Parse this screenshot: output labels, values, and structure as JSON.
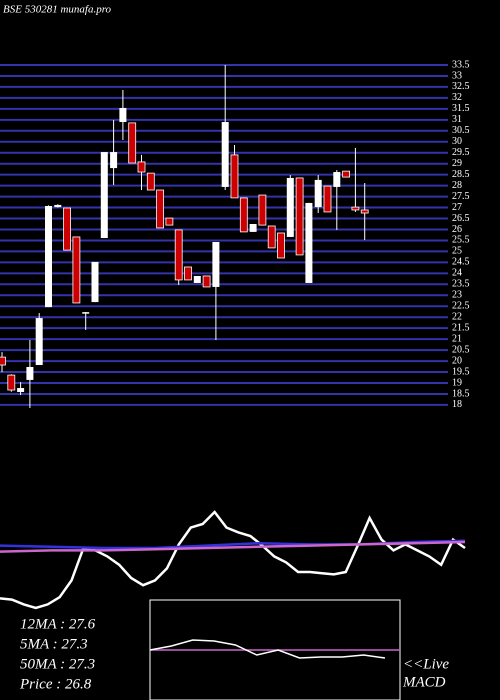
{
  "chart_data": [
    {
      "type": "candlestick",
      "title": "BSE 530281 munafa.pro",
      "open": [
        20.18,
        19.36,
        18.59,
        19.14,
        19.82,
        22.46,
        27.02,
        26.98,
        25.66,
        22.19,
        22.69,
        25.61,
        28.8,
        30.9,
        30.86,
        29.08,
        28.57,
        27.8,
        26.52,
        25.98,
        24.29,
        23.56,
        23.88,
        23.38,
        27.94,
        29.4,
        27.44,
        25.89,
        27.57,
        26.16,
        25.84,
        25.66,
        28.35,
        23.56,
        27.02,
        27.98,
        27.94,
        28.66,
        27.02,
        26.89
      ],
      "high": [
        20.41,
        19.4,
        19.04,
        20.96,
        22.19,
        27.1,
        27.15,
        26.98,
        25.66,
        22.23,
        24.52,
        29.53,
        30.99,
        32.36,
        30.86,
        29.4,
        28.57,
        27.8,
        26.52,
        25.98,
        24.29,
        23.88,
        23.88,
        25.43,
        33.5,
        29.85,
        27.44,
        26.25,
        27.57,
        26.16,
        25.84,
        28.48,
        28.35,
        27.21,
        28.48,
        27.98,
        28.71,
        28.66,
        29.72,
        28.12
      ],
      "low": [
        19.5,
        18.6,
        18.45,
        17.86,
        19.82,
        22.46,
        27.0,
        25.06,
        22.65,
        21.42,
        22.69,
        25.61,
        28.03,
        30.08,
        29.03,
        27.8,
        27.8,
        26.07,
        26.2,
        23.47,
        23.7,
        23.56,
        23.38,
        20.96,
        27.8,
        27.44,
        25.89,
        25.89,
        26.2,
        25.16,
        24.7,
        25.66,
        24.84,
        23.56,
        26.75,
        26.8,
        25.98,
        28.39,
        26.8,
        25.52
      ],
      "close": [
        19.82,
        18.68,
        18.77,
        19.73,
        21.96,
        27.07,
        27.12,
        25.06,
        22.65,
        22.23,
        24.52,
        29.53,
        29.53,
        31.54,
        29.03,
        28.62,
        27.8,
        26.07,
        26.2,
        23.7,
        23.7,
        23.88,
        23.38,
        25.43,
        30.9,
        27.44,
        25.89,
        26.25,
        26.2,
        25.16,
        24.7,
        28.35,
        24.84,
        27.21,
        28.26,
        26.8,
        28.62,
        28.39,
        26.89,
        26.75
      ],
      "up_color": "#ffffff",
      "down_color": "#cc0000",
      "grid_color": "#3333aa",
      "ylim": [
        17.86,
        33.5
      ],
      "yticks": [
        33.5,
        33,
        32.5,
        32,
        31.5,
        31,
        30.5,
        30,
        29.5,
        29,
        28.5,
        28,
        27.5,
        27,
        26.5,
        26,
        25.5,
        25,
        24.5,
        24,
        23.5,
        23,
        22.5,
        22,
        21.5,
        21,
        20.5,
        20,
        19.5,
        19,
        18.5,
        18
      ],
      "grid": true
    },
    {
      "type": "line",
      "series": [
        {
          "color": "#ffffff",
          "values": [
            18,
            17,
            13,
            10,
            13,
            19,
            33,
            60,
            58,
            53,
            46,
            35,
            29,
            33,
            43,
            63,
            77,
            80,
            90,
            77,
            73,
            70,
            62,
            53,
            48,
            40,
            40,
            39,
            38,
            40,
            62,
            85,
            67,
            58,
            63,
            58,
            53,
            46,
            67,
            60
          ]
        },
        {
          "color": "#3333dd",
          "values": [
            62,
            61,
            60,
            60,
            62,
            64,
            63,
            63,
            65,
            66
          ]
        },
        {
          "color": "#cc66cc",
          "values": [
            57,
            58,
            58,
            59,
            60,
            61,
            62,
            63,
            64,
            65
          ]
        }
      ],
      "ylim": [
        0,
        100
      ]
    },
    {
      "type": "macd",
      "title": "MACD",
      "annotation": "<<Live",
      "series": [
        {
          "color": "#ffffff",
          "values": [
            0,
            0.2,
            0.5,
            0.45,
            0.25,
            -0.25,
            0,
            -0.4,
            -0.35,
            -0.35,
            -0.25,
            -0.4
          ]
        }
      ],
      "signal_color": "#cc66cc",
      "ylim": [
        -2,
        2
      ]
    },
    {
      "type": "text",
      "lines": [
        "12MA : 27.6",
        "5MA : 27.3",
        "50MA : 27.3",
        "Price   : 26.8"
      ]
    }
  ]
}
